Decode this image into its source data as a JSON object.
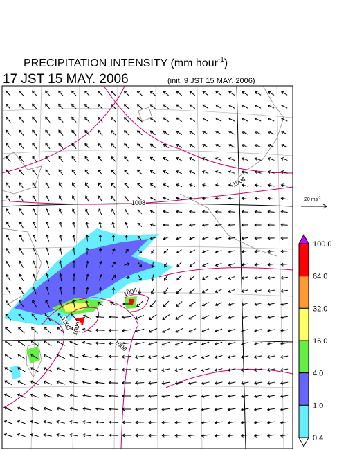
{
  "title": {
    "text": "PRECIPITATION INTENSITY (mm hour",
    "superscript": "-1",
    "close": ")"
  },
  "valid_time": "17 JST 15 MAY. 2006",
  "init_time": "(init. 9 JST 15 MAY. 2006)",
  "reference_vector": {
    "text": "20 ms",
    "superscript": "-1"
  },
  "isobar_labels": [
    "1008",
    "1004",
    "1004",
    "1000",
    "1008",
    "1008"
  ],
  "colorbar": {
    "labels": [
      "100.0",
      "64.0",
      "32.0",
      "16.0",
      "4.0",
      "1.0",
      "0.4"
    ],
    "colors": [
      "#ff0000",
      "#ff9933",
      "#ffff66",
      "#66ee44",
      "#6666ff",
      "#66eeff"
    ],
    "over_color": "#cc00ff",
    "under_color": "#ffffff"
  }
}
